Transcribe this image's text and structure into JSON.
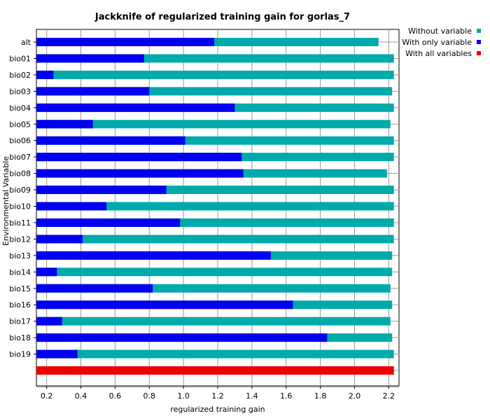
{
  "chart_data": {
    "type": "bar",
    "orientation": "horizontal",
    "title": "Jackknife of regularized training gain for gorlas_7",
    "xlabel": "regularized training gain",
    "ylabel": "Environmental Variable",
    "xlim": [
      0.14,
      2.26
    ],
    "xticks": [
      "0.2",
      "0.4",
      "0.6",
      "0.8",
      "1.0",
      "1.2",
      "1.4",
      "1.6",
      "1.8",
      "2.0",
      "2.2"
    ],
    "grid": true,
    "legend_position": "top-right",
    "categories": [
      "alt",
      "bio01",
      "bio02",
      "bio03",
      "bio04",
      "bio05",
      "bio06",
      "bio07",
      "bio08",
      "bio09",
      "bio10",
      "bio11",
      "bio12",
      "bio13",
      "bio14",
      "bio15",
      "bio16",
      "bio17",
      "bio18",
      "bio19"
    ],
    "series": [
      {
        "name": "Without variable",
        "color": "#00aaaa",
        "values": [
          2.14,
          2.23,
          2.23,
          2.22,
          2.23,
          2.21,
          2.23,
          2.23,
          2.19,
          2.23,
          2.23,
          2.23,
          2.23,
          2.22,
          2.22,
          2.21,
          2.22,
          2.21,
          2.22,
          2.23
        ]
      },
      {
        "name": "With only variable",
        "color": "#0000ee",
        "values": [
          1.18,
          0.77,
          0.24,
          0.8,
          1.3,
          0.47,
          1.01,
          1.34,
          1.35,
          0.9,
          0.55,
          0.98,
          0.41,
          1.51,
          0.26,
          0.82,
          1.64,
          0.29,
          1.84,
          0.38
        ]
      }
    ],
    "all_variables": {
      "name": "With all variables",
      "color": "#ee0000",
      "value": 2.23
    }
  }
}
